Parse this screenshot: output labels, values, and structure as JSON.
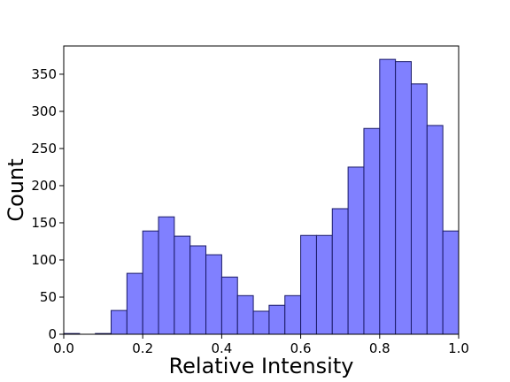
{
  "chart_data": {
    "type": "bar",
    "subtype": "histogram",
    "xlabel": "Relative Intensity",
    "ylabel": "Count",
    "xlim": [
      0.0,
      1.0
    ],
    "ylim": [
      0,
      388
    ],
    "bin_width": 0.04,
    "bin_edges": [
      0.0,
      0.04,
      0.08,
      0.12,
      0.16,
      0.2,
      0.24,
      0.28,
      0.32,
      0.36,
      0.4,
      0.44,
      0.48,
      0.52,
      0.56,
      0.6,
      0.64,
      0.68,
      0.72,
      0.76,
      0.8,
      0.84,
      0.88,
      0.92,
      0.96,
      1.0
    ],
    "values": [
      1,
      0,
      1,
      32,
      82,
      139,
      158,
      132,
      119,
      107,
      77,
      52,
      31,
      39,
      52,
      133,
      133,
      169,
      225,
      277,
      370,
      367,
      337,
      281,
      139
    ],
    "xticks": [
      "0.0",
      "0.2",
      "0.4",
      "0.6",
      "0.8",
      "1.0"
    ],
    "xtick_values": [
      0.0,
      0.2,
      0.4,
      0.6,
      0.8,
      1.0
    ],
    "yticks": [
      "0",
      "50",
      "100",
      "150",
      "200",
      "250",
      "300",
      "350"
    ],
    "ytick_values": [
      0,
      50,
      100,
      150,
      200,
      250,
      300,
      350
    ],
    "grid": false,
    "bar_color": "#8080ff",
    "edge_color": "#1a1a66"
  }
}
